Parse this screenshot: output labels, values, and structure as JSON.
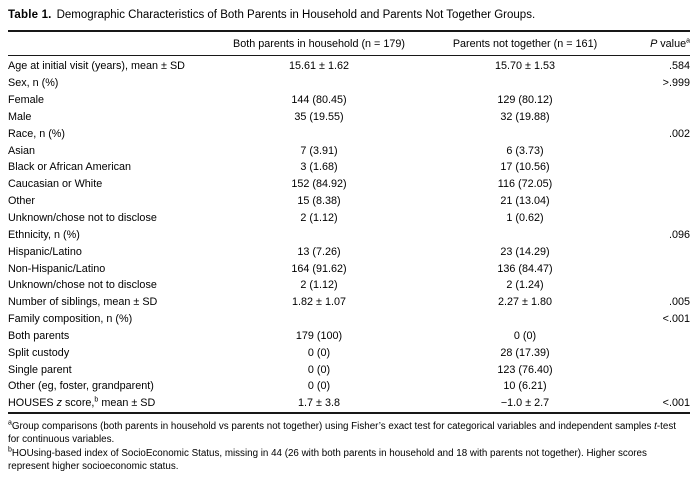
{
  "title": {
    "label": "Table 1.",
    "text": "Demographic Characteristics of Both Parents in Household and Parents Not Together Groups."
  },
  "table": {
    "group_headers": [
      "Both parents in household (n = 179)",
      "Parents not together (n = 161)"
    ],
    "p_header": {
      "italic_p": "P",
      "label": " value",
      "superscript": "a"
    },
    "rows": [
      {
        "label": "Age at initial visit (years), mean ± SD",
        "indent": 0,
        "group1": "15.61 ± 1.62",
        "group2": "15.70 ± 1.53",
        "p": ".584"
      },
      {
        "label": "Sex, n (%)",
        "indent": 0,
        "group1": "",
        "group2": "",
        "p": ">.999"
      },
      {
        "label": "Female",
        "indent": 1,
        "group1": "144 (80.45)",
        "group2": "129 (80.12)",
        "p": ""
      },
      {
        "label": "Male",
        "indent": 1,
        "group1": "35 (19.55)",
        "group2": "32 (19.88)",
        "p": ""
      },
      {
        "label": "Race, n (%)",
        "indent": 0,
        "group1": "",
        "group2": "",
        "p": ".002"
      },
      {
        "label": "Asian",
        "indent": 1,
        "group1": "7 (3.91)",
        "group2": "6 (3.73)",
        "p": ""
      },
      {
        "label": "Black or African American",
        "indent": 1,
        "group1": "3 (1.68)",
        "group2": "17 (10.56)",
        "p": ""
      },
      {
        "label": "Caucasian or White",
        "indent": 1,
        "group1": "152 (84.92)",
        "group2": "116 (72.05)",
        "p": ""
      },
      {
        "label": "Other",
        "indent": 1,
        "group1": "15 (8.38)",
        "group2": "21 (13.04)",
        "p": ""
      },
      {
        "label": "Unknown/chose not to disclose",
        "indent": 1,
        "group1": "2 (1.12)",
        "group2": "1 (0.62)",
        "p": ""
      },
      {
        "label": "Ethnicity, n (%)",
        "indent": 0,
        "group1": "",
        "group2": "",
        "p": ".096"
      },
      {
        "label": "Hispanic/Latino",
        "indent": 1,
        "group1": "13 (7.26)",
        "group2": "23 (14.29)",
        "p": ""
      },
      {
        "label": "Non-Hispanic/Latino",
        "indent": 1,
        "group1": "164 (91.62)",
        "group2": "136 (84.47)",
        "p": ""
      },
      {
        "label": "Unknown/chose not to disclose",
        "indent": 1,
        "group1": "2 (1.12)",
        "group2": "2 (1.24)",
        "p": ""
      },
      {
        "label": "Number of siblings, mean ± SD",
        "indent": 0,
        "group1": "1.82 ± 1.07",
        "group2": "2.27 ± 1.80",
        "p": ".005"
      },
      {
        "label": "Family composition, n (%)",
        "indent": 0,
        "group1": "",
        "group2": "",
        "p": "<.001"
      },
      {
        "label": "Both parents",
        "indent": 1,
        "group1": "179 (100)",
        "group2": "0 (0)",
        "p": ""
      },
      {
        "label": "Split custody",
        "indent": 1,
        "group1": "0 (0)",
        "group2": "28 (17.39)",
        "p": ""
      },
      {
        "label": "Single parent",
        "indent": 1,
        "group1": "0 (0)",
        "group2": "123 (76.40)",
        "p": ""
      },
      {
        "label": "Other (eg, foster, grandparent)",
        "indent": 1,
        "group1": "0 (0)",
        "group2": "10 (6.21)",
        "p": ""
      },
      {
        "label": "HOUSES z score, mean ± SD",
        "indent": 0,
        "label_parts": [
          {
            "t": "HOUSES "
          },
          {
            "t": "z",
            "style": "italic"
          },
          {
            "t": " score,"
          },
          {
            "t": "b",
            "style": "sup"
          },
          {
            "t": " mean ± SD"
          }
        ],
        "group1": "1.7 ± 3.8",
        "group2": "−1.0 ± 2.7",
        "p": "<.001"
      }
    ]
  },
  "footnotes": [
    {
      "marker": "a",
      "parts": [
        {
          "t": "Group comparisons (both parents in household vs parents not together) using Fisher’s exact test for categorical variables and independent samples "
        },
        {
          "t": "t",
          "style": "italic"
        },
        {
          "t": "-test for continuous variables."
        }
      ]
    },
    {
      "marker": "b",
      "parts": [
        {
          "t": "HOUsing-based index of SocioEconomic Status, missing in 44 (26 with both parents in household and 18 with parents not together). Higher scores represent higher socioeconomic status."
        }
      ]
    }
  ]
}
